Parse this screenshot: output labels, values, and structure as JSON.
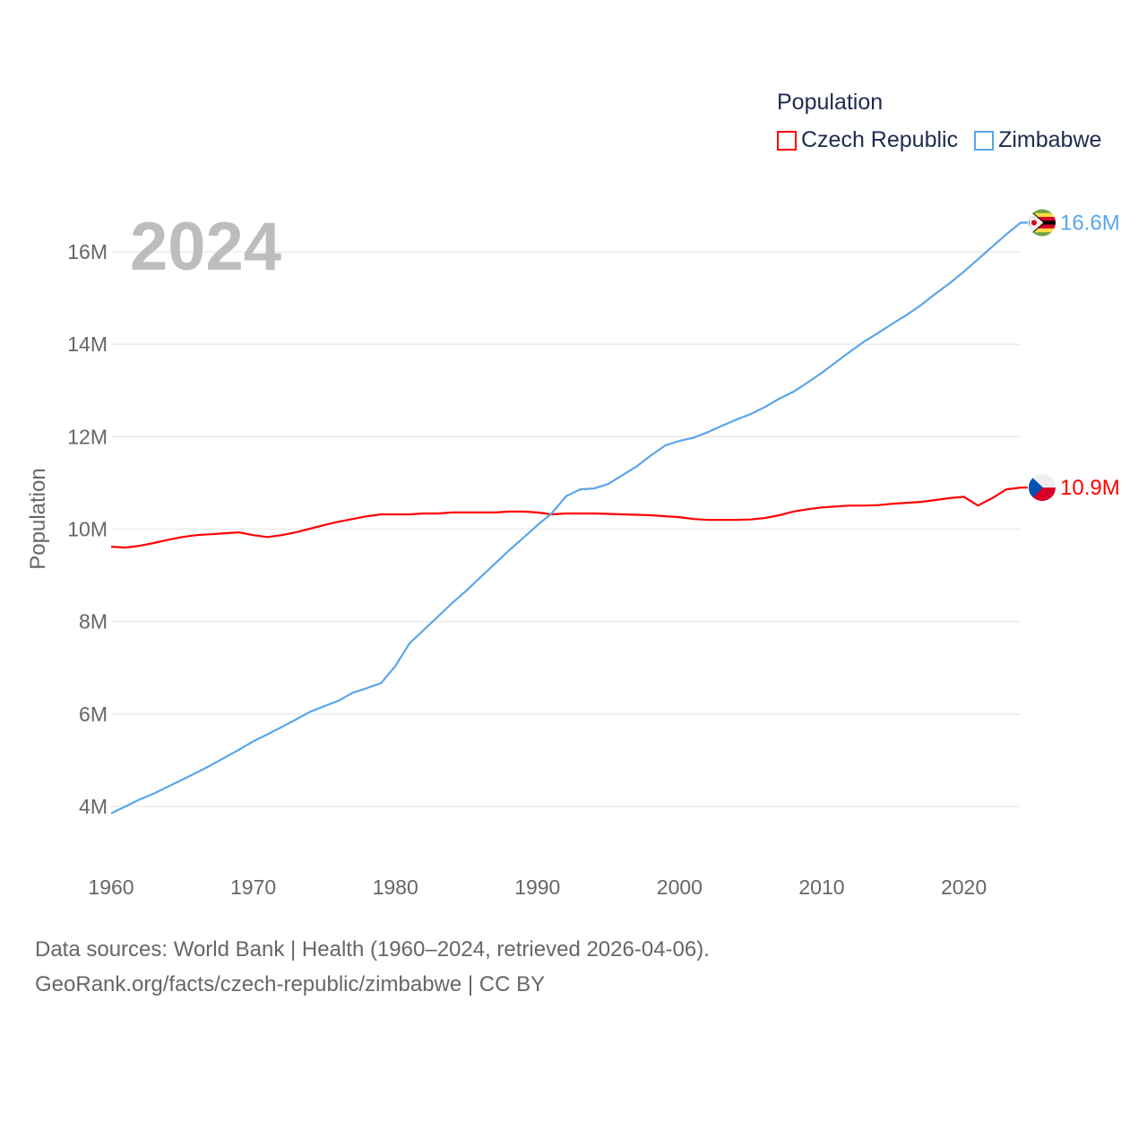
{
  "chart_data": {
    "type": "line",
    "title": "Population",
    "ylabel": "Population",
    "xlabel": "",
    "current_year_label": "2024",
    "xlim": [
      1960,
      2024
    ],
    "ylim": [
      3,
      17
    ],
    "x_ticks": [
      "1960",
      "1970",
      "1980",
      "1990",
      "2000",
      "2010",
      "2020"
    ],
    "y_ticks": [
      {
        "value": 4,
        "label": "4M"
      },
      {
        "value": 6,
        "label": "6M"
      },
      {
        "value": 8,
        "label": "8M"
      },
      {
        "value": 10,
        "label": "10M"
      },
      {
        "value": 12,
        "label": "12M"
      },
      {
        "value": 14,
        "label": "14M"
      },
      {
        "value": 16,
        "label": "16M"
      }
    ],
    "grid": true,
    "legend_position": "top-right",
    "x": [
      1960,
      1961,
      1962,
      1963,
      1964,
      1965,
      1966,
      1967,
      1968,
      1969,
      1970,
      1971,
      1972,
      1973,
      1974,
      1975,
      1976,
      1977,
      1978,
      1979,
      1980,
      1981,
      1982,
      1983,
      1984,
      1985,
      1986,
      1987,
      1988,
      1989,
      1990,
      1991,
      1992,
      1993,
      1994,
      1995,
      1996,
      1997,
      1998,
      1999,
      2000,
      2001,
      2002,
      2003,
      2004,
      2005,
      2006,
      2007,
      2008,
      2009,
      2010,
      2011,
      2012,
      2013,
      2014,
      2015,
      2016,
      2017,
      2018,
      2019,
      2020,
      2021,
      2022,
      2023,
      2024
    ],
    "series": [
      {
        "name": "Czech Republic",
        "color": "#ff0000",
        "end_label": "10.9M",
        "flag": "czech-flag",
        "values": [
          9.62,
          9.6,
          9.64,
          9.7,
          9.77,
          9.83,
          9.87,
          9.89,
          9.91,
          9.93,
          9.87,
          9.83,
          9.87,
          9.93,
          10.01,
          10.09,
          10.16,
          10.22,
          10.28,
          10.32,
          10.32,
          10.32,
          10.34,
          10.34,
          10.36,
          10.36,
          10.36,
          10.36,
          10.38,
          10.38,
          10.36,
          10.32,
          10.34,
          10.34,
          10.34,
          10.33,
          10.32,
          10.31,
          10.3,
          10.28,
          10.26,
          10.22,
          10.2,
          10.2,
          10.2,
          10.21,
          10.24,
          10.3,
          10.38,
          10.43,
          10.47,
          10.49,
          10.51,
          10.51,
          10.52,
          10.55,
          10.57,
          10.59,
          10.63,
          10.67,
          10.7,
          10.51,
          10.67,
          10.86,
          10.9
        ]
      },
      {
        "name": "Zimbabwe",
        "color": "#5aa5ea",
        "end_label": "16.6M",
        "flag": "zimbabwe-flag",
        "values": [
          3.85,
          4.0,
          4.15,
          4.28,
          4.43,
          4.58,
          4.73,
          4.89,
          5.06,
          5.23,
          5.41,
          5.56,
          5.72,
          5.88,
          6.05,
          6.17,
          6.29,
          6.46,
          6.56,
          6.67,
          7.04,
          7.53,
          7.82,
          8.11,
          8.4,
          8.67,
          8.96,
          9.25,
          9.54,
          9.81,
          10.09,
          10.34,
          10.71,
          10.86,
          10.88,
          10.98,
          11.17,
          11.36,
          11.6,
          11.81,
          11.91,
          11.98,
          12.1,
          12.24,
          12.37,
          12.49,
          12.64,
          12.82,
          12.97,
          13.17,
          13.38,
          13.61,
          13.84,
          14.06,
          14.25,
          14.45,
          14.64,
          14.85,
          15.09,
          15.32,
          15.57,
          15.84,
          16.11,
          16.38,
          16.63
        ]
      }
    ]
  },
  "footer": {
    "line1": "Data sources: World Bank | Health (1960–2024, retrieved 2026-04-06).",
    "line2": "GeoRank.org/facts/czech-republic/zimbabwe | CC BY"
  }
}
